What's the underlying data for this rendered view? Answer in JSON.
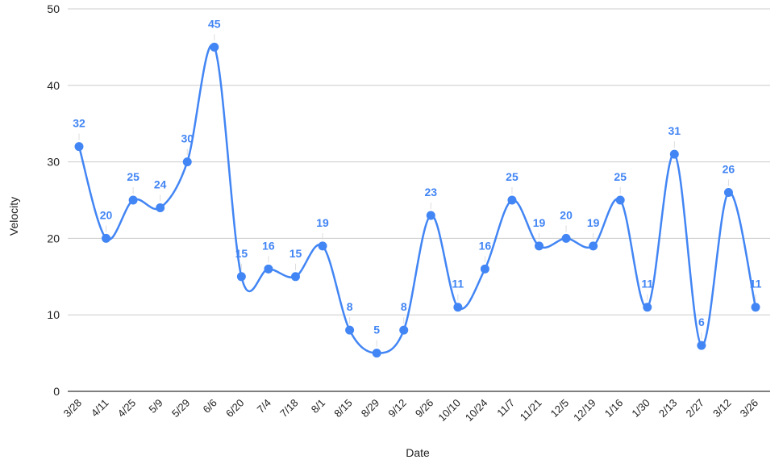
{
  "chart_data": {
    "type": "line",
    "title": "",
    "xlabel": "Date",
    "ylabel": "Velocity",
    "ylim": [
      0,
      50
    ],
    "yticks": [
      0,
      10,
      20,
      30,
      40,
      50
    ],
    "grid": true,
    "smooth": true,
    "color": "#4285f4",
    "categories": [
      "3/28",
      "4/11",
      "4/25",
      "5/9",
      "5/29",
      "6/6",
      "6/20",
      "7/4",
      "7/18",
      "8/1",
      "8/15",
      "8/29",
      "9/12",
      "9/26",
      "10/10",
      "10/24",
      "11/7",
      "11/21",
      "12/5",
      "12/19",
      "1/16",
      "1/30",
      "2/13",
      "2/27",
      "3/12",
      "3/26"
    ],
    "series": [
      {
        "values": [
          32,
          20,
          25,
          24,
          30,
          45,
          15,
          16,
          15,
          19,
          8,
          5,
          8,
          23,
          11,
          16,
          25,
          19,
          20,
          19,
          25,
          11,
          31,
          6,
          26,
          11
        ]
      }
    ]
  }
}
